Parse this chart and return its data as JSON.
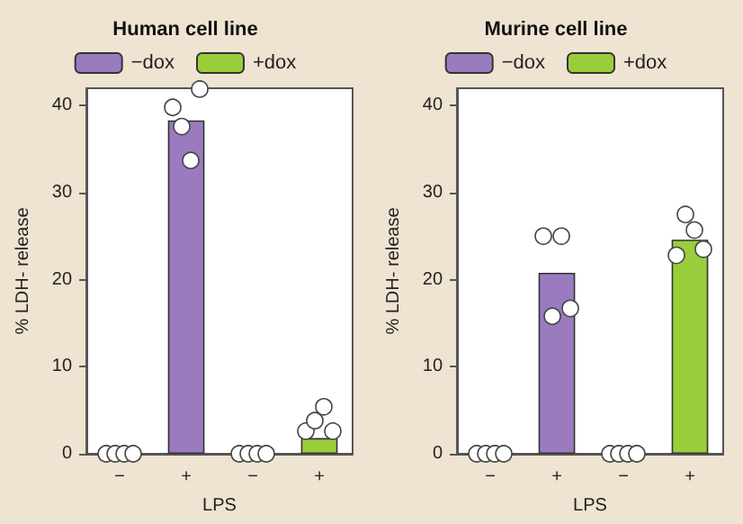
{
  "chart_data": [
    {
      "type": "bar",
      "title": "Human cell line",
      "xlabel": "LPS",
      "ylabel": "% LDH- release",
      "categories": [
        "−",
        "+",
        "−",
        "+"
      ],
      "ylim": [
        0,
        42
      ],
      "yticks": [
        0,
        10,
        20,
        30,
        40
      ],
      "grid": false,
      "legend": "top",
      "series": [
        {
          "name": "−dox",
          "color": "#9b7bbf",
          "values": [
            null,
            38.3,
            null,
            null
          ]
        },
        {
          "name": "+dox",
          "color": "#9acd3a",
          "values": [
            null,
            null,
            null,
            1.8
          ]
        },
        {
          "type": "scatter",
          "color": "#ffffff",
          "marker": "circle",
          "values": [
            0,
            39.8,
            0,
            2.6
          ]
        },
        {
          "type": "scatter",
          "color": "#ffffff",
          "marker": "circle",
          "values": [
            0,
            37.6,
            0,
            3.8
          ]
        },
        {
          "type": "scatter",
          "color": "#ffffff",
          "marker": "circle",
          "values": [
            0,
            33.7,
            0,
            5.4
          ]
        },
        {
          "type": "scatter",
          "color": "#ffffff",
          "marker": "circle",
          "values": [
            0,
            41.9,
            0,
            2.6
          ]
        }
      ]
    },
    {
      "type": "bar",
      "title": "Murine cell line",
      "xlabel": "LPS",
      "ylabel": "% LDH- release",
      "categories": [
        "−",
        "+",
        "−",
        "+"
      ],
      "ylim": [
        0,
        42
      ],
      "yticks": [
        0,
        10,
        20,
        30,
        40
      ],
      "grid": false,
      "legend": "top",
      "series": [
        {
          "name": "−dox",
          "color": "#9b7bbf",
          "values": [
            null,
            20.8,
            null,
            null
          ]
        },
        {
          "name": "+dox",
          "color": "#9acd3a",
          "values": [
            null,
            null,
            null,
            24.6
          ]
        },
        {
          "type": "scatter",
          "color": "#ffffff",
          "marker": "circle",
          "values": [
            0,
            25.0,
            0,
            22.8
          ]
        },
        {
          "type": "scatter",
          "color": "#ffffff",
          "marker": "circle",
          "values": [
            0,
            15.8,
            0,
            27.5
          ]
        },
        {
          "type": "scatter",
          "color": "#ffffff",
          "marker": "circle",
          "values": [
            0,
            25.0,
            0,
            25.7
          ]
        },
        {
          "type": "scatter",
          "color": "#ffffff",
          "marker": "circle",
          "values": [
            0,
            16.7,
            0,
            23.5
          ]
        }
      ]
    }
  ]
}
